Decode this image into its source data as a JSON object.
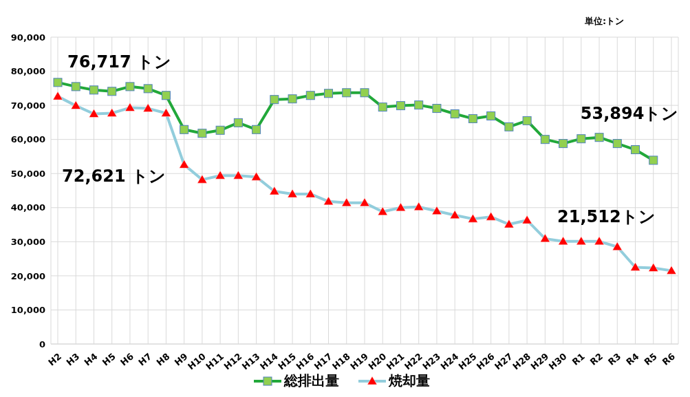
{
  "chart_data": {
    "type": "line",
    "categories": [
      "H2",
      "H3",
      "H4",
      "H5",
      "H6",
      "H7",
      "H8",
      "H9",
      "H10",
      "H11",
      "H12",
      "H13",
      "H14",
      "H15",
      "H16",
      "H17",
      "H18",
      "H19",
      "H20",
      "H21",
      "H22",
      "H23",
      "H24",
      "H25",
      "H26",
      "H27",
      "H28",
      "H29",
      "H30",
      "R1",
      "R2",
      "R3",
      "R4",
      "R5",
      "R6"
    ],
    "series": [
      {
        "name": "総排出量",
        "color": "#22a83a",
        "marker": "square",
        "colors": [
          "#92d050",
          "#92d050",
          "#92d050",
          "#92d050",
          "#92d050",
          "#92d050",
          "#92d050",
          "#92d050",
          "#92d050",
          "#92d050",
          "#92d050",
          "#92d050",
          "#92d050",
          "#92d050",
          "#92d050",
          "#92d050",
          "#92d050",
          "#92d050",
          "#92d050",
          "#92d050",
          "#92d050",
          "#92d050",
          "#92d050",
          "#92d050",
          "#92d050",
          "#92d050",
          "#92d050",
          "#92d050",
          "#92d050",
          "#92d050",
          "#92d050",
          "#92d050",
          "#92d050",
          "#92d050",
          null
        ],
        "values": [
          76717,
          75500,
          74500,
          74100,
          75500,
          74900,
          72900,
          62900,
          61800,
          62700,
          64900,
          62900,
          71700,
          71900,
          72900,
          73500,
          73700,
          73700,
          69500,
          69900,
          70100,
          69100,
          67500,
          66100,
          66900,
          63700,
          65500,
          60000,
          58800,
          60200,
          60600,
          58800,
          57000,
          53894,
          null
        ]
      },
      {
        "name": "焼却量",
        "color": "#92cddc",
        "marker": "triangle",
        "colors": [
          "#ff0000",
          "#ff0000",
          "#ff0000",
          "#ff0000",
          "#ff0000",
          "#ff0000",
          "#ff0000",
          "#ff0000",
          "#ff0000",
          "#ff0000",
          "#ff0000",
          "#ff0000",
          "#ff0000",
          "#ff0000",
          "#ff0000",
          "#ff0000",
          "#ff0000",
          "#ff0000",
          "#ff0000",
          "#ff0000",
          "#ff0000",
          "#ff0000",
          "#ff0000",
          "#ff0000",
          "#ff0000",
          "#ff0000",
          "#ff0000",
          "#ff0000",
          "#ff0000",
          "#ff0000",
          "#ff0000",
          "#ff0000",
          "#ff0000",
          "#ff0000",
          "#ff0000"
        ],
        "values": [
          72621,
          69900,
          67500,
          67700,
          69300,
          69100,
          67700,
          52600,
          48200,
          49400,
          49400,
          49000,
          44800,
          44000,
          44000,
          41800,
          41400,
          41400,
          38800,
          40000,
          40200,
          39000,
          37800,
          36700,
          37300,
          35100,
          36300,
          30900,
          30100,
          30100,
          30100,
          28500,
          22500,
          22300,
          21512
        ]
      }
    ],
    "ylim": [
      0,
      90000
    ],
    "yticks": [
      0,
      {
        "value": 10000,
        "label": "10,000"
      },
      {
        "value": 20000,
        "label": "20,000"
      },
      {
        "value": 30000,
        "label": "30,000"
      },
      {
        "value": 40000,
        "label": "40,000"
      },
      {
        "value": 50000,
        "label": "50,000"
      },
      {
        "value": 60000,
        "label": "60,000"
      },
      {
        "value": 70000,
        "label": "70,000"
      },
      {
        "value": 80000,
        "label": "80,000"
      },
      {
        "value": 90000,
        "label": "90,000"
      }
    ],
    "grid": true,
    "legend": "bottom",
    "line_style": "solid",
    "annotations": [
      "単位:トン",
      {
        "text": "76,717 トン",
        "x": "H2",
        "y": 76717
      },
      "72,621 トン",
      {
        "text": "53,894トン",
        "x": "R5",
        "y": 53894
      },
      {
        "text": "21,512トン",
        "x": "R6",
        "y": 21512
      }
    ]
  }
}
